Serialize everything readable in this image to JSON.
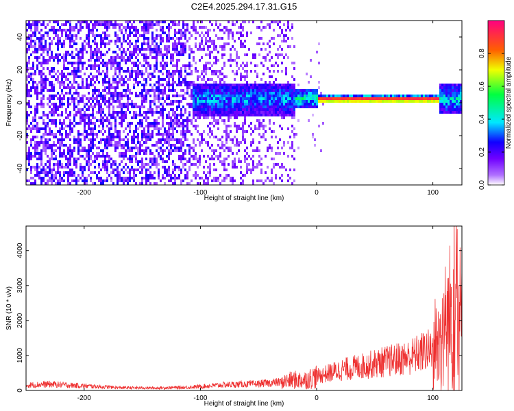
{
  "figure": {
    "title": "C2E4.2025.294.17.31.G15"
  },
  "chart_data": [
    {
      "type": "heatmap",
      "title": "C2E4.2025.294.17.31.G15",
      "xlabel": "Height of straight line (km)",
      "ylabel": "Frequency (Hz)",
      "xlim": [
        -250,
        125
      ],
      "ylim": [
        -50,
        50
      ],
      "xticks": [
        -200,
        -100,
        0,
        100
      ],
      "yticks": [
        -40,
        -20,
        0,
        20,
        40
      ],
      "colorbar": {
        "label": "Normalized spectral amplitude",
        "range": [
          0.0,
          1.0
        ],
        "ticks": [
          0.0,
          0.2,
          0.4,
          0.6,
          0.8
        ],
        "colormap": [
          "#ffffff",
          "#8a00ff",
          "#1000ff",
          "#00e8ff",
          "#00ff40",
          "#f0ff00",
          "#ff6000",
          "#ff0080"
        ]
      },
      "features": [
        {
          "name": "broadband noise",
          "x_range": [
            -250,
            -20
          ],
          "f_range": [
            -50,
            50
          ],
          "amplitude": 0.15
        },
        {
          "name": "signal band",
          "x_range": [
            -105,
            125
          ],
          "f_center": 1.5,
          "amplitude_max": 0.95
        }
      ]
    },
    {
      "type": "line",
      "xlabel": "Height of straight line (km)",
      "ylabel": "SNR (10 * v/v)",
      "xlim": [
        -250,
        125
      ],
      "ylim": [
        0,
        4700
      ],
      "xticks": [
        -200,
        -100,
        0,
        100
      ],
      "yticks": [
        0,
        1000,
        2000,
        3000,
        4000
      ],
      "series": [
        {
          "name": "SNR",
          "color": "#ee3030",
          "x": [
            -250,
            -230,
            -200,
            -170,
            -140,
            -110,
            -80,
            -50,
            -30,
            -20,
            -10,
            0,
            20,
            40,
            60,
            80,
            95,
            100,
            110,
            120,
            125
          ],
          "values": [
            150,
            180,
            130,
            80,
            70,
            90,
            160,
            190,
            240,
            300,
            300,
            400,
            580,
            700,
            830,
            950,
            1150,
            1100,
            1600,
            2600,
            1800
          ]
        }
      ]
    }
  ]
}
